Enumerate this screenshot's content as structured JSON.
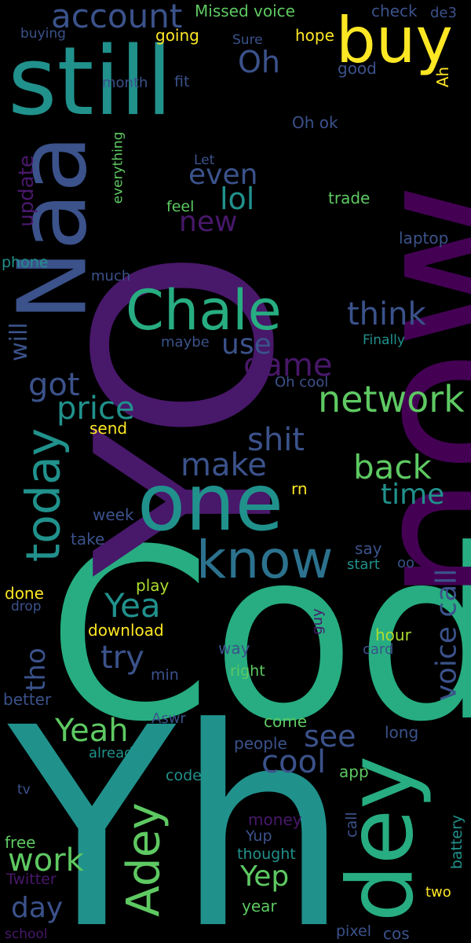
{
  "palette": {
    "background": "#000000",
    "purple": "#440154",
    "dark_purple": "#48186a",
    "indigo": "#3b528b",
    "blue": "#2c728e",
    "teal": "#21918c",
    "green_teal": "#27ad81",
    "green": "#5ec962",
    "lime": "#addc30",
    "yellow": "#fde725"
  },
  "words": [
    "Yh",
    "Cod",
    "now",
    "YO",
    "Naa",
    "still",
    "buy",
    "account",
    "Missed voice",
    "check",
    "de3",
    "buying",
    "going",
    "Sure",
    "hope",
    "month",
    "fit",
    "good",
    "Oh",
    "Ah",
    "Oh ok",
    "everything",
    "update",
    "Let",
    "even",
    "lol",
    "new",
    "feel",
    "trade",
    "laptop",
    "phone",
    "much",
    "Chale",
    "think",
    "use",
    "maybe",
    "Finally",
    "game",
    "will",
    "got",
    "today",
    "Oh cool",
    "network",
    "price",
    "send",
    "shit",
    "make",
    "back",
    "one",
    "rn",
    "time",
    "week",
    "take",
    "know",
    "say",
    "start",
    "oo",
    "Yea",
    "play",
    "done",
    "drop",
    "voice call",
    "download",
    "try",
    "tho",
    "guy",
    "hour",
    "way",
    "card",
    "min",
    "right",
    "better",
    "Aswr",
    "Yeah",
    "come",
    "see",
    "people",
    "long",
    "already",
    "cool",
    "dey",
    "tv",
    "code",
    "app",
    "Adey",
    "money",
    "call",
    "work",
    "free",
    "Yup",
    "thought",
    "battery",
    "Yep",
    "Twitter",
    "day",
    "year",
    "two",
    "school",
    "pixel",
    "cos"
  ]
}
